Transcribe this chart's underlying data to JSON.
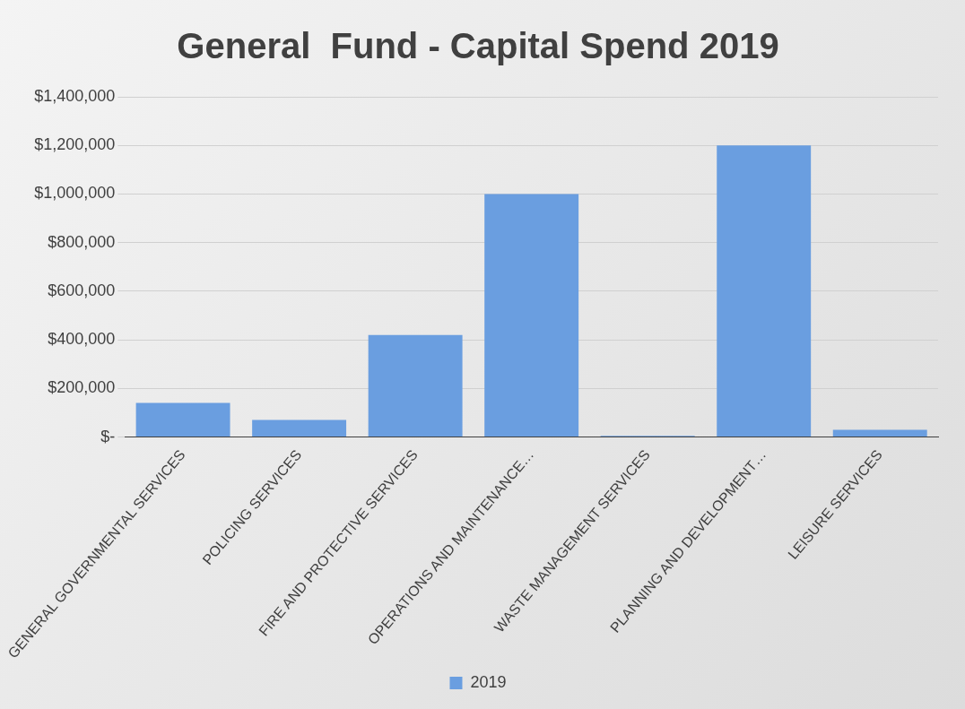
{
  "chart_data": {
    "type": "bar",
    "title": "General  Fund - Capital Spend 2019",
    "categories": [
      "GENERAL GOVERNMENTAL SERVICES",
      "POLICING SERVICES",
      "FIRE AND PROTECTIVE SERVICES",
      "OPERATIONS AND MAINTENANCE…",
      "WASTE MANAGEMENT SERVICES",
      "PLANNING AND DEVELOPMENT…",
      "LEISURE SERVICES"
    ],
    "series": [
      {
        "name": "2019",
        "color": "#6a9ee0",
        "values": [
          140000,
          70000,
          420000,
          1000000,
          5000,
          1200000,
          30000
        ]
      }
    ],
    "ylim": [
      0,
      1400000
    ],
    "yticks": [
      {
        "value": 0,
        "label": "$-"
      },
      {
        "value": 200000,
        "label": "$200,000"
      },
      {
        "value": 400000,
        "label": "$400,000"
      },
      {
        "value": 600000,
        "label": "$600,000"
      },
      {
        "value": 800000,
        "label": "$800,000"
      },
      {
        "value": 1000000,
        "label": "$1,000,000"
      },
      {
        "value": 1200000,
        "label": "$1,200,000"
      },
      {
        "value": 1400000,
        "label": "$1,400,000"
      }
    ],
    "grid": "y",
    "legend": "bottom"
  }
}
